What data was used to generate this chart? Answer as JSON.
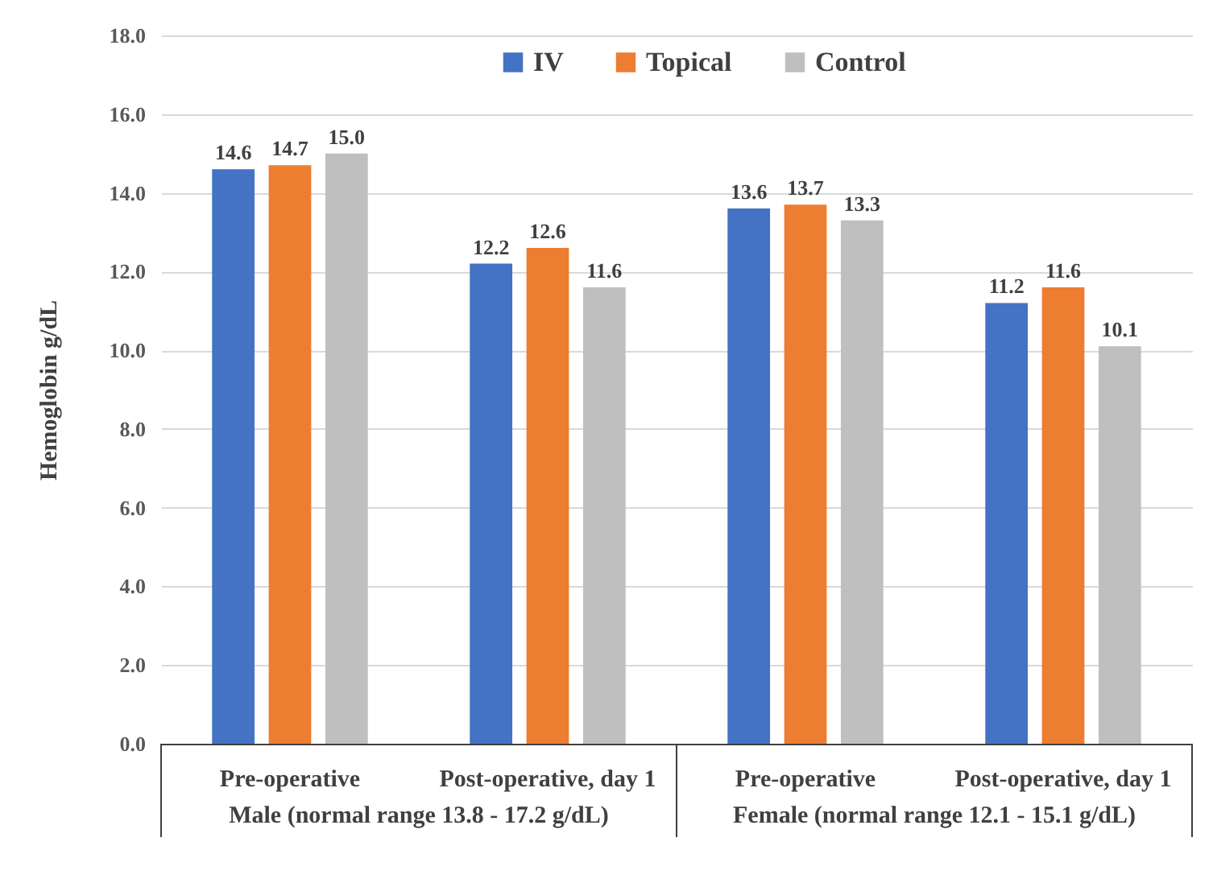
{
  "chart_data": {
    "type": "bar",
    "ylabel": "Hemoglobin g/dL",
    "categories": [
      "Pre-operative",
      "Post-operative, day 1",
      "Pre-operative",
      "Post-operative, day 1"
    ],
    "series": [
      {
        "name": "IV",
        "color": "#4472c4",
        "values": [
          14.6,
          12.2,
          13.6,
          11.2
        ],
        "value_labels": [
          "14.6",
          "12.2",
          "13.6",
          "11.2"
        ]
      },
      {
        "name": "Topical",
        "color": "#ed7d31",
        "values": [
          14.7,
          12.6,
          13.7,
          11.6
        ],
        "value_labels": [
          "14.7",
          "12.6",
          "13.7",
          "11.6"
        ]
      },
      {
        "name": "Control",
        "color": "#bfbfbf",
        "values": [
          15.0,
          11.6,
          13.3,
          10.1
        ],
        "value_labels": [
          "15.0",
          "11.6",
          "13.3",
          "10.1"
        ]
      }
    ],
    "annotations": [
      "Male (normal range 13.8 - 17.2 g/dL)",
      "Female (normal range 12.1 - 15.1 g/dL)"
    ],
    "ylim": [
      0,
      18
    ],
    "yticks": [
      {
        "value": 0,
        "label": "0.0"
      },
      {
        "value": 2,
        "label": "2.0"
      },
      {
        "value": 4,
        "label": "4.0"
      },
      {
        "value": 6,
        "label": "6.0"
      },
      {
        "value": 8,
        "label": "8.0"
      },
      {
        "value": 10,
        "label": "10.0"
      },
      {
        "value": 12,
        "label": "12.0"
      },
      {
        "value": 14,
        "label": "14.0"
      },
      {
        "value": 16,
        "label": "16.0"
      },
      {
        "value": 18,
        "label": "18.0"
      }
    ],
    "grid": "y",
    "legend": "top"
  }
}
